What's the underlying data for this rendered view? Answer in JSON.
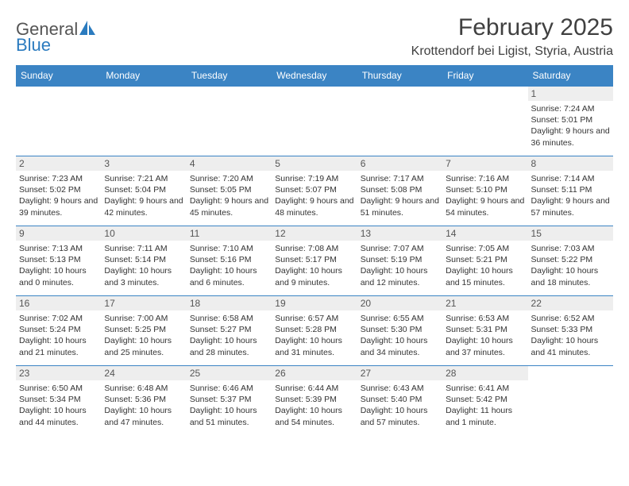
{
  "brand": {
    "part1": "General",
    "part2": "Blue"
  },
  "title": "February 2025",
  "location": "Krottendorf bei Ligist, Styria, Austria",
  "colors": {
    "header_bg": "#3b84c4",
    "header_text": "#ffffff",
    "daynum_bg": "#eeeeee",
    "border": "#3b84c4",
    "logo_blue": "#2b7bbf",
    "text": "#333333"
  },
  "day_headers": [
    "Sunday",
    "Monday",
    "Tuesday",
    "Wednesday",
    "Thursday",
    "Friday",
    "Saturday"
  ],
  "weeks": [
    [
      {
        "n": "",
        "empty": true
      },
      {
        "n": "",
        "empty": true
      },
      {
        "n": "",
        "empty": true
      },
      {
        "n": "",
        "empty": true
      },
      {
        "n": "",
        "empty": true
      },
      {
        "n": "",
        "empty": true
      },
      {
        "n": "1",
        "sunrise": "7:24 AM",
        "sunset": "5:01 PM",
        "daylight": "9 hours and 36 minutes."
      }
    ],
    [
      {
        "n": "2",
        "sunrise": "7:23 AM",
        "sunset": "5:02 PM",
        "daylight": "9 hours and 39 minutes."
      },
      {
        "n": "3",
        "sunrise": "7:21 AM",
        "sunset": "5:04 PM",
        "daylight": "9 hours and 42 minutes."
      },
      {
        "n": "4",
        "sunrise": "7:20 AM",
        "sunset": "5:05 PM",
        "daylight": "9 hours and 45 minutes."
      },
      {
        "n": "5",
        "sunrise": "7:19 AM",
        "sunset": "5:07 PM",
        "daylight": "9 hours and 48 minutes."
      },
      {
        "n": "6",
        "sunrise": "7:17 AM",
        "sunset": "5:08 PM",
        "daylight": "9 hours and 51 minutes."
      },
      {
        "n": "7",
        "sunrise": "7:16 AM",
        "sunset": "5:10 PM",
        "daylight": "9 hours and 54 minutes."
      },
      {
        "n": "8",
        "sunrise": "7:14 AM",
        "sunset": "5:11 PM",
        "daylight": "9 hours and 57 minutes."
      }
    ],
    [
      {
        "n": "9",
        "sunrise": "7:13 AM",
        "sunset": "5:13 PM",
        "daylight": "10 hours and 0 minutes."
      },
      {
        "n": "10",
        "sunrise": "7:11 AM",
        "sunset": "5:14 PM",
        "daylight": "10 hours and 3 minutes."
      },
      {
        "n": "11",
        "sunrise": "7:10 AM",
        "sunset": "5:16 PM",
        "daylight": "10 hours and 6 minutes."
      },
      {
        "n": "12",
        "sunrise": "7:08 AM",
        "sunset": "5:17 PM",
        "daylight": "10 hours and 9 minutes."
      },
      {
        "n": "13",
        "sunrise": "7:07 AM",
        "sunset": "5:19 PM",
        "daylight": "10 hours and 12 minutes."
      },
      {
        "n": "14",
        "sunrise": "7:05 AM",
        "sunset": "5:21 PM",
        "daylight": "10 hours and 15 minutes."
      },
      {
        "n": "15",
        "sunrise": "7:03 AM",
        "sunset": "5:22 PM",
        "daylight": "10 hours and 18 minutes."
      }
    ],
    [
      {
        "n": "16",
        "sunrise": "7:02 AM",
        "sunset": "5:24 PM",
        "daylight": "10 hours and 21 minutes."
      },
      {
        "n": "17",
        "sunrise": "7:00 AM",
        "sunset": "5:25 PM",
        "daylight": "10 hours and 25 minutes."
      },
      {
        "n": "18",
        "sunrise": "6:58 AM",
        "sunset": "5:27 PM",
        "daylight": "10 hours and 28 minutes."
      },
      {
        "n": "19",
        "sunrise": "6:57 AM",
        "sunset": "5:28 PM",
        "daylight": "10 hours and 31 minutes."
      },
      {
        "n": "20",
        "sunrise": "6:55 AM",
        "sunset": "5:30 PM",
        "daylight": "10 hours and 34 minutes."
      },
      {
        "n": "21",
        "sunrise": "6:53 AM",
        "sunset": "5:31 PM",
        "daylight": "10 hours and 37 minutes."
      },
      {
        "n": "22",
        "sunrise": "6:52 AM",
        "sunset": "5:33 PM",
        "daylight": "10 hours and 41 minutes."
      }
    ],
    [
      {
        "n": "23",
        "sunrise": "6:50 AM",
        "sunset": "5:34 PM",
        "daylight": "10 hours and 44 minutes."
      },
      {
        "n": "24",
        "sunrise": "6:48 AM",
        "sunset": "5:36 PM",
        "daylight": "10 hours and 47 minutes."
      },
      {
        "n": "25",
        "sunrise": "6:46 AM",
        "sunset": "5:37 PM",
        "daylight": "10 hours and 51 minutes."
      },
      {
        "n": "26",
        "sunrise": "6:44 AM",
        "sunset": "5:39 PM",
        "daylight": "10 hours and 54 minutes."
      },
      {
        "n": "27",
        "sunrise": "6:43 AM",
        "sunset": "5:40 PM",
        "daylight": "10 hours and 57 minutes."
      },
      {
        "n": "28",
        "sunrise": "6:41 AM",
        "sunset": "5:42 PM",
        "daylight": "11 hours and 1 minute."
      },
      {
        "n": "",
        "empty": true
      }
    ]
  ],
  "labels": {
    "sunrise": "Sunrise:",
    "sunset": "Sunset:",
    "daylight": "Daylight:"
  }
}
